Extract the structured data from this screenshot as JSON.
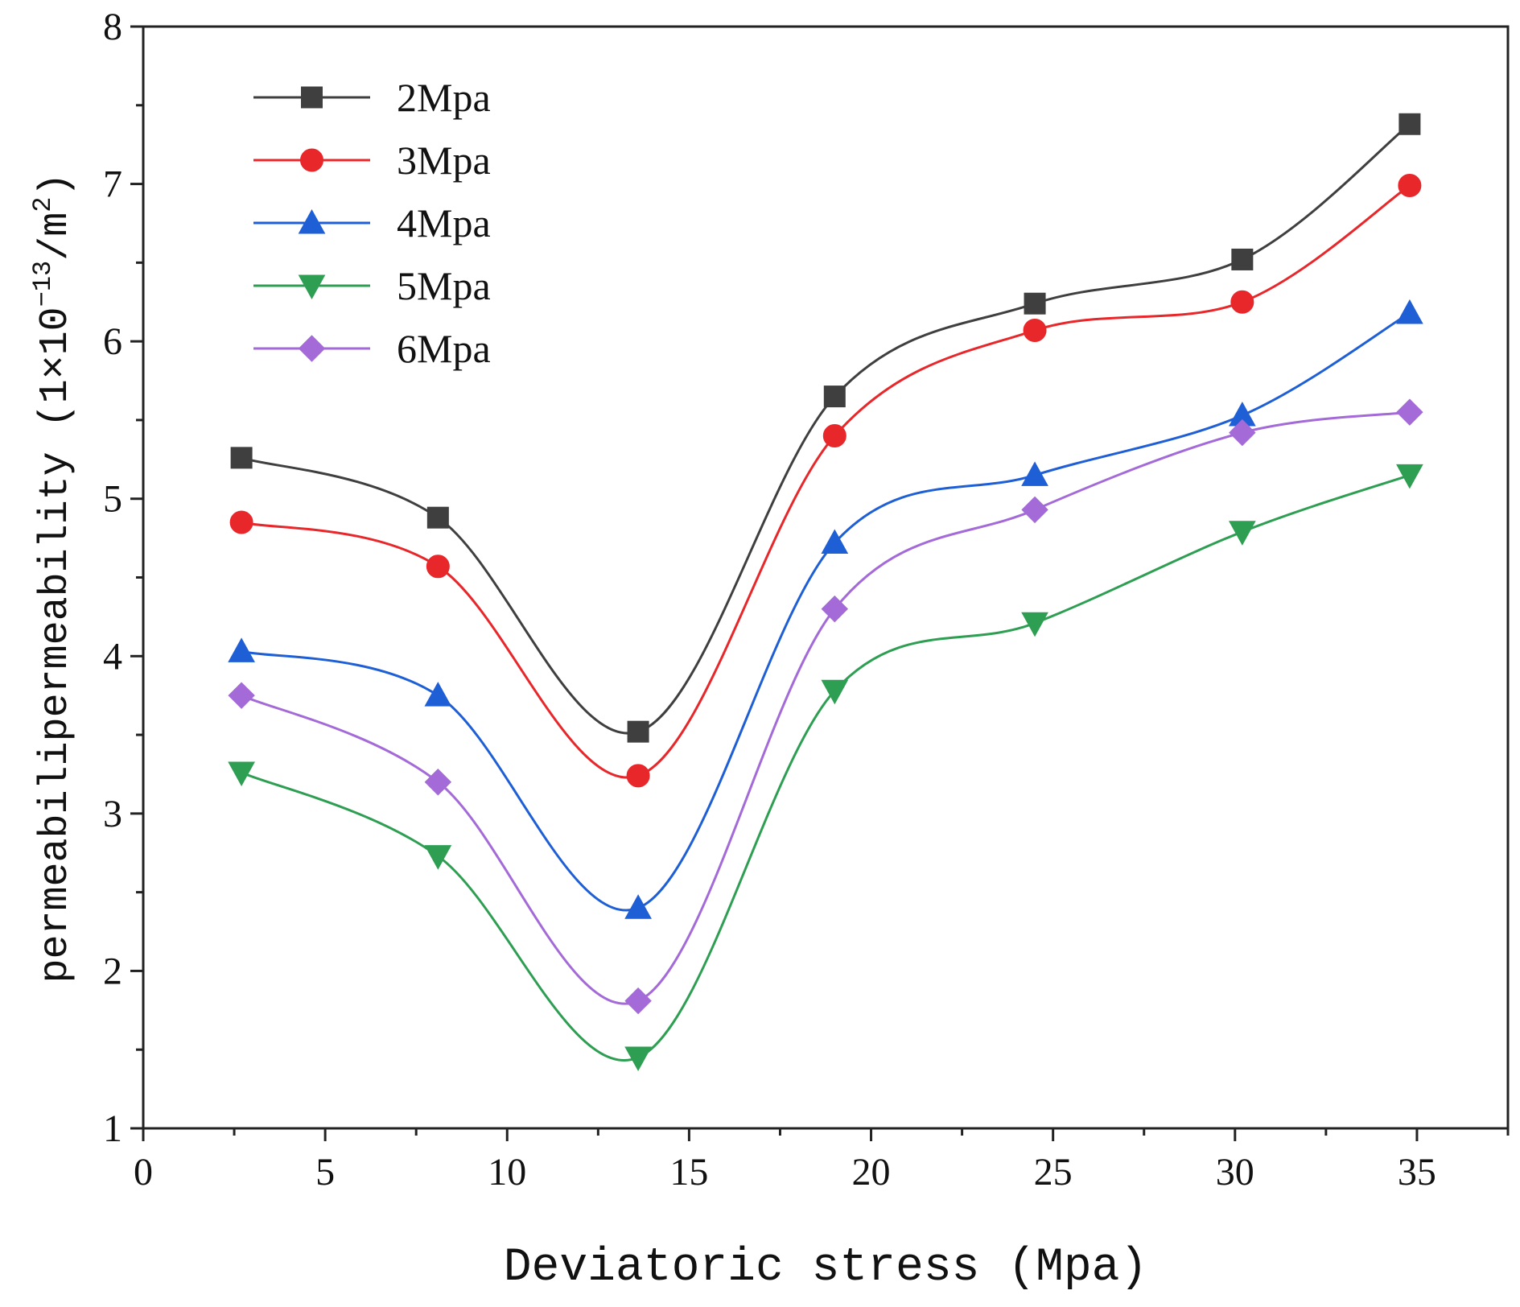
{
  "chart_data": {
    "type": "line",
    "title": "",
    "xlabel": "Deviatoric stress (Mpa)",
    "ylabel_prefix": "permeabilipermeability (1×10",
    "ylabel_exp": "−13",
    "ylabel_mid": "/m",
    "ylabel_sup2": "2",
    "ylabel_suffix": ")",
    "xlim": [
      0,
      37.5
    ],
    "ylim": [
      1,
      8
    ],
    "xticks": [
      0,
      5,
      10,
      15,
      20,
      25,
      30,
      35
    ],
    "yticks": [
      1,
      2,
      3,
      4,
      5,
      6,
      7,
      8
    ],
    "grid": false,
    "legend_position": "top-left",
    "x": [
      2.7,
      8.1,
      13.6,
      19.0,
      24.5,
      30.2,
      34.8
    ],
    "series": [
      {
        "name": "2Mpa",
        "marker": "square",
        "color": "#3f3f3f",
        "values": [
          5.26,
          4.88,
          3.52,
          5.65,
          6.24,
          6.52,
          7.38
        ]
      },
      {
        "name": "3Mpa",
        "marker": "circle",
        "color": "#e8272b",
        "values": [
          4.85,
          4.57,
          3.24,
          5.4,
          6.07,
          6.25,
          6.99
        ]
      },
      {
        "name": "4Mpa",
        "marker": "triangle-up",
        "color": "#1f5fd6",
        "values": [
          4.03,
          3.75,
          2.4,
          4.72,
          5.15,
          5.53,
          6.18
        ]
      },
      {
        "name": "5Mpa",
        "marker": "triangle-down",
        "color": "#2e9e52",
        "values": [
          3.26,
          2.73,
          1.45,
          3.78,
          4.21,
          4.79,
          5.15
        ]
      },
      {
        "name": "6Mpa",
        "marker": "diamond",
        "color": "#a36ad8",
        "values": [
          3.75,
          3.2,
          1.81,
          4.3,
          4.93,
          5.42,
          5.55
        ]
      }
    ]
  }
}
